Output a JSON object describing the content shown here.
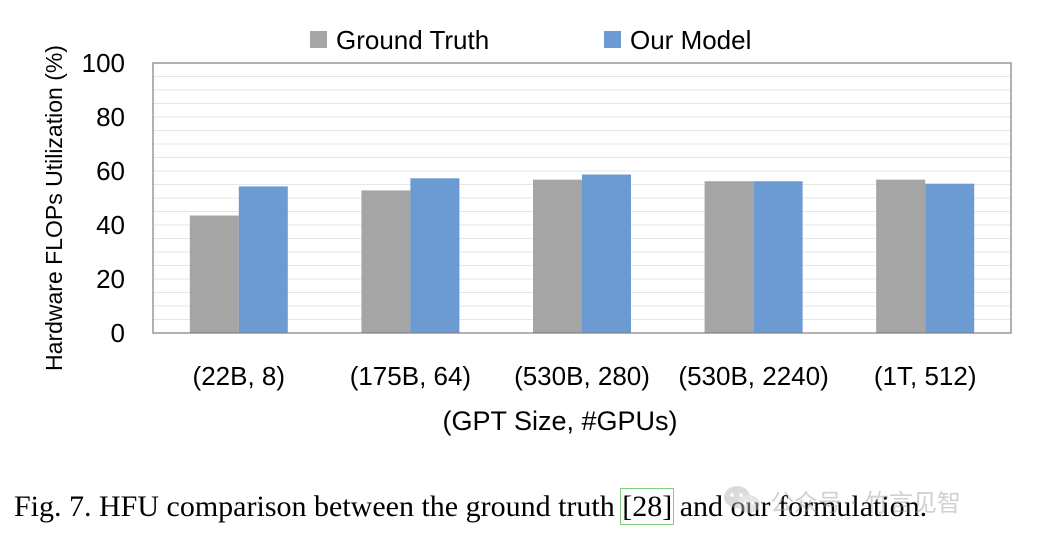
{
  "chart_data": {
    "type": "bar",
    "xlabel": "(GPT Size, #GPUs)",
    "ylabel": "Hardware FLOPs Utilization (%)",
    "ylim": [
      0,
      100
    ],
    "yticks": [
      0,
      20,
      40,
      60,
      80,
      100
    ],
    "grid": true,
    "legend_position": "top",
    "categories": [
      "(22B, 8)",
      "(175B, 64)",
      "(530B, 280)",
      "(530B, 2240)",
      "(1T, 512)"
    ],
    "series": [
      {
        "name": "Ground Truth",
        "color": "#a5a5a5",
        "values": [
          43.5,
          52.8,
          56.8,
          56.2,
          56.8
        ]
      },
      {
        "name": "Our Model",
        "color": "#6b9bd2",
        "values": [
          54.3,
          57.3,
          58.7,
          56.2,
          55.3
        ]
      }
    ]
  },
  "caption": {
    "prefix": "Fig. 7.  HFU comparison between the ground truth ",
    "ref": "[28]",
    "suffix": " and our formulation."
  },
  "watermark": {
    "text": "公众号 · 竹言见智",
    "icon": "wechat-icon"
  }
}
